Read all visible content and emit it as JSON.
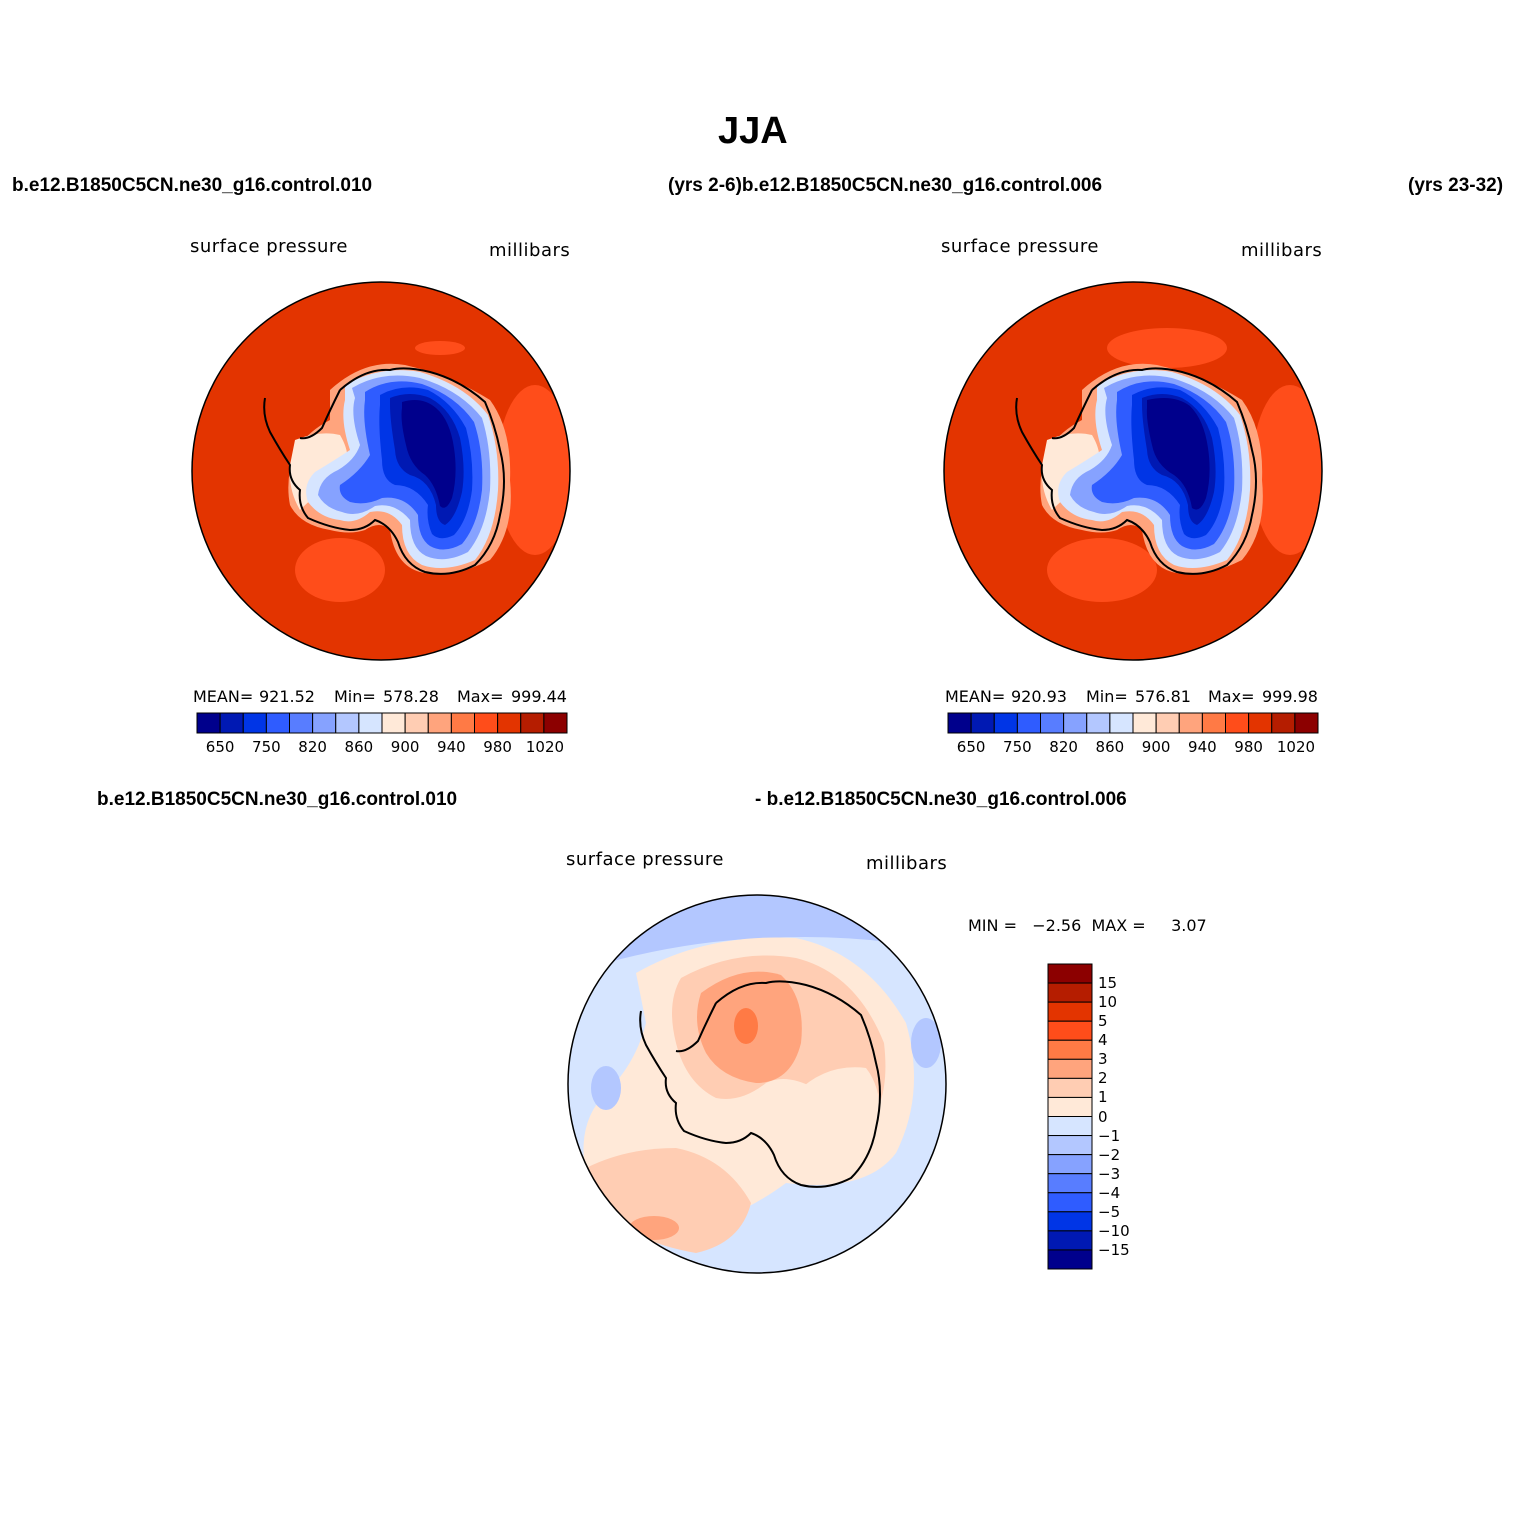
{
  "title": "JJA",
  "top_case_left": "b.e12.B1850C5CN.ne30_g16.control.010",
  "top_case_mid": "(yrs 2-6)b.e12.B1850C5CN.ne30_g16.control.006",
  "top_case_right": "(yrs 23-32)",
  "panels": [
    {
      "variable": "surface pressure",
      "units": "millibars",
      "mean_label": "MEAN=",
      "mean": "921.52",
      "min_label": "Min=",
      "min": "578.28",
      "max_label": "Max=",
      "max": "999.44"
    },
    {
      "variable": "surface pressure",
      "units": "millibars",
      "mean_label": "MEAN=",
      "mean": "920.93",
      "min_label": "Min=",
      "min": "576.81",
      "max_label": "Max=",
      "max": "999.98"
    }
  ],
  "abs_colorbar": {
    "colors": [
      "#00008c",
      "#0019b3",
      "#0035e6",
      "#2f5cff",
      "#587dff",
      "#86a2ff",
      "#b3c7ff",
      "#d6e5ff",
      "#ffe9d8",
      "#ffcdb3",
      "#ffa47d",
      "#ff7a45",
      "#ff4d1a",
      "#e33400",
      "#b51d00",
      "#8c0000"
    ],
    "ticks": [
      "650",
      "750",
      "820",
      "860",
      "900",
      "940",
      "980",
      "1020"
    ]
  },
  "diff_case_left": "b.e12.B1850C5CN.ne30_g16.control.010",
  "diff_case_right": "- b.e12.B1850C5CN.ne30_g16.control.006",
  "diff_panel": {
    "variable": "surface pressure",
    "units": "millibars",
    "minmax": "MIN =   −2.56  MAX =     3.07"
  },
  "diff_colorbar": {
    "colors": [
      "#8c0000",
      "#b51d00",
      "#e33400",
      "#ff4d1a",
      "#ff7a45",
      "#ffa47d",
      "#ffcdb3",
      "#ffe9d8",
      "#d6e5ff",
      "#b3c7ff",
      "#86a2ff",
      "#587dff",
      "#2f5cff",
      "#0035e6",
      "#0019b3",
      "#00008c"
    ],
    "ticks": [
      "15",
      "10",
      "5",
      "4",
      "3",
      "2",
      "1",
      "0",
      "−1",
      "−2",
      "−3",
      "−4",
      "−5",
      "−10",
      "−15"
    ]
  }
}
